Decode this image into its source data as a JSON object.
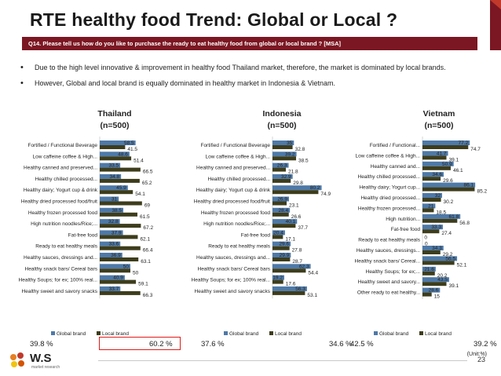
{
  "header": {
    "title": "RTE healthy food Trend: Global or Local ?",
    "question": "Q14. Please tell us how do you like to purchase the ready to eat healthy food from global or local brand ? [MSA]"
  },
  "bullets": [
    "Due to the high level innovative & improvement in healthy food Thailand market, therefore, the market is dominated by local brands.",
    "However, Global and local brand is equally dominated in healthy market in Indonesia & Vietnam."
  ],
  "colors": {
    "global": "#4e79a7",
    "local": "#3d3d1c",
    "accent": "#7b1722",
    "highlight": "#e01b1b"
  },
  "legend": {
    "global": "Global brand",
    "local": "Local brand"
  },
  "panels": [
    {
      "name": "Thailand",
      "n": "(n=500)",
      "global_total": "39.8 %",
      "local_total": "60.2 %"
    },
    {
      "name": "Indonesia",
      "n": "(n=500)",
      "global_total": "37.6 %",
      "local_total": "34.6 %"
    },
    {
      "name": "Vietnam",
      "n": "(n=500)",
      "global_total": "42.5 %",
      "local_total": "39.2 %"
    }
  ],
  "chart_data": [
    {
      "type": "bar",
      "title": "Thailand",
      "orientation": "horizontal",
      "categories": [
        "Fortified / Functional Beverage",
        "Low caffeine coffee & High...",
        "Healthy canned and preserved...",
        "Healthy chilled processed...",
        "Healthy dairy; Yogurt cup & drink",
        "Healthy dried processed food/fruit",
        "Healthy frozen processed food",
        "High nutrition noodles/Rice;...",
        "Fat-free food",
        "Ready to eat healthy meals",
        "Healthy sauces, dressings and...",
        "Healthy snack bars/ Cereal bars",
        "Healthy Soups; for ex; 100% real...",
        "Healthy sweet and savory snacks"
      ],
      "series": [
        {
          "name": "Global brand",
          "values": [
            58.5,
            48.6,
            33.5,
            34.8,
            45.9,
            31,
            38.5,
            32.8,
            37.9,
            33.6,
            36.9,
            50.0,
            40.9,
            33.7
          ]
        },
        {
          "name": "Local brand",
          "values": [
            41.5,
            51.4,
            66.5,
            65.2,
            54.1,
            69,
            61.5,
            67.2,
            62.1,
            66.4,
            63.1,
            50,
            59.1,
            66.3
          ]
        }
      ],
      "xlim": [
        0,
        100
      ],
      "legend": "bottom"
    },
    {
      "type": "bar",
      "title": "Indonesia",
      "orientation": "horizontal",
      "categories": [
        "Fortified / Functional Beverage",
        "Low caffeine coffee & High...",
        "Healthy canned and preserved...",
        "Healthy chilled processed...",
        "Healthy dairy; Yogurt cup & drink",
        "Healthy dried processed food/fruit",
        "Healthy frozen processed food",
        "High nutrition noodles/Rice;...",
        "Fat-free food",
        "Ready to eat healthy meals",
        "Healthy sauces, dressings and...",
        "Healthy snack bars/ Cereal bars",
        "Healthy Soups; for ex; 100% real...",
        "Healthy sweet and savory snacks"
      ],
      "series": [
        {
          "name": "Global brand",
          "values": [
            35.0,
            39.2,
            26.3,
            32.9,
            80.2,
            26.9,
            28.4,
            40.1,
            20.4,
            29.6,
            29.9,
            62.3,
            19.2,
            56.3
          ]
        },
        {
          "name": "Local brand",
          "values": [
            32.8,
            38.5,
            21.8,
            29.8,
            74.9,
            23.1,
            26.6,
            37.7,
            17.1,
            27.8,
            28.7,
            54.4,
            17.6,
            53.1
          ]
        }
      ],
      "xlim": [
        0,
        100
      ],
      "legend": "bottom"
    },
    {
      "type": "bar",
      "title": "Vietnam",
      "orientation": "horizontal",
      "categories": [
        "Fortified / Functional...",
        "Low caffeine coffee & High...",
        "Healthy canned and...",
        "Healthy chilled processed...",
        "Healthy dairy; Yogurt cup...",
        "Healthy dried processed...",
        "Healthy frozen processed...",
        "High nutrition...",
        "Fat-free food",
        "Ready to eat healthy meals",
        "Healthy sauces, dressings...",
        "Healthy snack bars/ Cereal...",
        "Healthy Soups; for ex;...",
        "Healthy sweet and savory...",
        "Other ready to eat healthy..."
      ],
      "series": [
        {
          "name": "Global brand",
          "values": [
            77.2,
            41.7,
            50.9,
            34.6,
            86.1,
            32,
            21.0,
            61.8,
            33.3,
            0,
            34.3,
            56.5,
            21.6,
            43.5,
            28.6
          ]
        },
        {
          "name": "Local brand",
          "values": [
            74.7,
            39.1,
            46.1,
            29.6,
            85.2,
            30.2,
            18.5,
            56.8,
            27.4,
            0,
            29.2,
            52.1,
            20.2,
            39.1,
            15
          ]
        }
      ],
      "xlim": [
        0,
        100
      ],
      "legend": "bottom"
    }
  ],
  "footer": {
    "unit": "(Unit:%)",
    "page": "23",
    "logo": "W.S",
    "logo_sub": "market research"
  }
}
